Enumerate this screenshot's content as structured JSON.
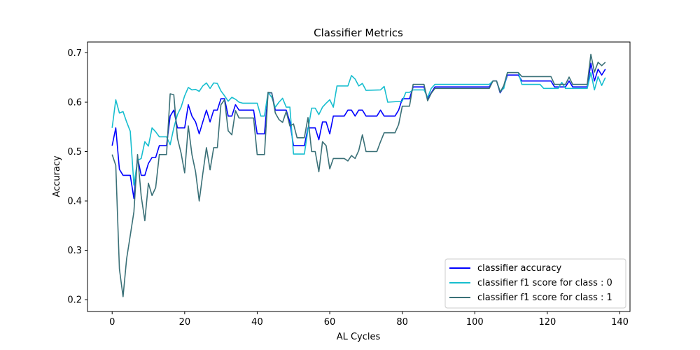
{
  "chart_data": {
    "type": "line",
    "title": "Classifier Metrics",
    "xlabel": "AL Cycles",
    "ylabel": "Accuracy",
    "xlim": [
      -6.8,
      142.8
    ],
    "ylim": [
      0.176,
      0.722
    ],
    "xticks": [
      0,
      20,
      40,
      60,
      80,
      100,
      120,
      140
    ],
    "yticks": [
      0.2,
      0.3,
      0.4,
      0.5,
      0.6,
      0.7
    ],
    "xtick_labels": [
      "0",
      "20",
      "40",
      "60",
      "80",
      "100",
      "120",
      "140"
    ],
    "ytick_labels": [
      "0.2",
      "0.3",
      "0.4",
      "0.5",
      "0.6",
      "0.7"
    ],
    "grid": false,
    "legend_position": "lower-right",
    "series": [
      {
        "name": "classifier accuracy",
        "color": "#0000ff",
        "points": [
          [
            0,
            0.512
          ],
          [
            1,
            0.548
          ],
          [
            2,
            0.464
          ],
          [
            3,
            0.452
          ],
          [
            5,
            0.452
          ],
          [
            6,
            0.405
          ],
          [
            7,
            0.488
          ],
          [
            8,
            0.452
          ],
          [
            9,
            0.452
          ],
          [
            10,
            0.476
          ],
          [
            11,
            0.488
          ],
          [
            12,
            0.488
          ],
          [
            13,
            0.512
          ],
          [
            15,
            0.512
          ],
          [
            16,
            0.572
          ],
          [
            17,
            0.584
          ],
          [
            18,
            0.548
          ],
          [
            20,
            0.548
          ],
          [
            21,
            0.595
          ],
          [
            22,
            0.572
          ],
          [
            23,
            0.56
          ],
          [
            24,
            0.536
          ],
          [
            25,
            0.56
          ],
          [
            26,
            0.584
          ],
          [
            27,
            0.56
          ],
          [
            28,
            0.584
          ],
          [
            29,
            0.584
          ],
          [
            30,
            0.607
          ],
          [
            31,
            0.607
          ],
          [
            32,
            0.572
          ],
          [
            33,
            0.572
          ],
          [
            34,
            0.595
          ],
          [
            35,
            0.584
          ],
          [
            39,
            0.584
          ],
          [
            40,
            0.536
          ],
          [
            42,
            0.536
          ],
          [
            43,
            0.619
          ],
          [
            44,
            0.619
          ],
          [
            45,
            0.584
          ],
          [
            48,
            0.584
          ],
          [
            49,
            0.56
          ],
          [
            50,
            0.512
          ],
          [
            53,
            0.512
          ],
          [
            54,
            0.548
          ],
          [
            56,
            0.548
          ],
          [
            57,
            0.524
          ],
          [
            58,
            0.56
          ],
          [
            59,
            0.56
          ],
          [
            60,
            0.536
          ],
          [
            61,
            0.572
          ],
          [
            64,
            0.572
          ],
          [
            65,
            0.584
          ],
          [
            66,
            0.584
          ],
          [
            67,
            0.572
          ],
          [
            68,
            0.584
          ],
          [
            69,
            0.584
          ],
          [
            70,
            0.572
          ],
          [
            73,
            0.572
          ],
          [
            74,
            0.584
          ],
          [
            75,
            0.572
          ],
          [
            78,
            0.572
          ],
          [
            79,
            0.584
          ],
          [
            80,
            0.607
          ],
          [
            82,
            0.607
          ],
          [
            83,
            0.631
          ],
          [
            86,
            0.631
          ],
          [
            87,
            0.607
          ],
          [
            88,
            0.619
          ],
          [
            89,
            0.631
          ],
          [
            104,
            0.631
          ],
          [
            105,
            0.643
          ],
          [
            106,
            0.643
          ],
          [
            107,
            0.619
          ],
          [
            108,
            0.631
          ],
          [
            109,
            0.655
          ],
          [
            112,
            0.655
          ],
          [
            113,
            0.643
          ],
          [
            121,
            0.643
          ],
          [
            122,
            0.631
          ],
          [
            125,
            0.631
          ],
          [
            126,
            0.643
          ],
          [
            127,
            0.631
          ],
          [
            131,
            0.631
          ],
          [
            132,
            0.679
          ],
          [
            133,
            0.643
          ],
          [
            134,
            0.667
          ],
          [
            135,
            0.655
          ],
          [
            136,
            0.667
          ]
        ]
      },
      {
        "name": "classifier f1 score for class : 0",
        "color": "#17becf",
        "points": [
          [
            0,
            0.548
          ],
          [
            1,
            0.605
          ],
          [
            2,
            0.578
          ],
          [
            3,
            0.581
          ],
          [
            4,
            0.56
          ],
          [
            5,
            0.541
          ],
          [
            6,
            0.432
          ],
          [
            7,
            0.482
          ],
          [
            8,
            0.486
          ],
          [
            9,
            0.52
          ],
          [
            10,
            0.511
          ],
          [
            11,
            0.548
          ],
          [
            12,
            0.54
          ],
          [
            13,
            0.53
          ],
          [
            15,
            0.53
          ],
          [
            16,
            0.514
          ],
          [
            17,
            0.548
          ],
          [
            18,
            0.575
          ],
          [
            19,
            0.59
          ],
          [
            20,
            0.613
          ],
          [
            21,
            0.63
          ],
          [
            22,
            0.625
          ],
          [
            23,
            0.626
          ],
          [
            24,
            0.622
          ],
          [
            25,
            0.633
          ],
          [
            26,
            0.639
          ],
          [
            27,
            0.628
          ],
          [
            28,
            0.639
          ],
          [
            29,
            0.638
          ],
          [
            30,
            0.623
          ],
          [
            31,
            0.613
          ],
          [
            32,
            0.602
          ],
          [
            33,
            0.61
          ],
          [
            34,
            0.606
          ],
          [
            35,
            0.6
          ],
          [
            36,
            0.598
          ],
          [
            40,
            0.598
          ],
          [
            41,
            0.572
          ],
          [
            42,
            0.572
          ],
          [
            43,
            0.62
          ],
          [
            44,
            0.61
          ],
          [
            45,
            0.59
          ],
          [
            46,
            0.6
          ],
          [
            47,
            0.608
          ],
          [
            48,
            0.59
          ],
          [
            49,
            0.59
          ],
          [
            50,
            0.495
          ],
          [
            53,
            0.495
          ],
          [
            54,
            0.545
          ],
          [
            55,
            0.588
          ],
          [
            56,
            0.588
          ],
          [
            57,
            0.575
          ],
          [
            58,
            0.59
          ],
          [
            59,
            0.598
          ],
          [
            60,
            0.605
          ],
          [
            61,
            0.59
          ],
          [
            62,
            0.633
          ],
          [
            65,
            0.633
          ],
          [
            66,
            0.654
          ],
          [
            67,
            0.647
          ],
          [
            68,
            0.633
          ],
          [
            69,
            0.638
          ],
          [
            70,
            0.624
          ],
          [
            74,
            0.625
          ],
          [
            75,
            0.632
          ],
          [
            76,
            0.6
          ],
          [
            80,
            0.602
          ],
          [
            81,
            0.62
          ],
          [
            82,
            0.62
          ],
          [
            83,
            0.625
          ],
          [
            86,
            0.625
          ],
          [
            87,
            0.61
          ],
          [
            88,
            0.628
          ],
          [
            89,
            0.636
          ],
          [
            104,
            0.636
          ],
          [
            105,
            0.643
          ],
          [
            106,
            0.643
          ],
          [
            107,
            0.622
          ],
          [
            108,
            0.628
          ],
          [
            109,
            0.66
          ],
          [
            112,
            0.66
          ],
          [
            113,
            0.636
          ],
          [
            118,
            0.636
          ],
          [
            119,
            0.628
          ],
          [
            121,
            0.628
          ],
          [
            122,
            0.628
          ],
          [
            123,
            0.628
          ],
          [
            124,
            0.64
          ],
          [
            125,
            0.628
          ],
          [
            131,
            0.628
          ],
          [
            132,
            0.66
          ],
          [
            133,
            0.625
          ],
          [
            134,
            0.652
          ],
          [
            135,
            0.634
          ],
          [
            136,
            0.65
          ]
        ]
      },
      {
        "name": "classifier f1 score for class : 1",
        "color": "#3a7077",
        "points": [
          [
            0,
            0.494
          ],
          [
            1,
            0.472
          ],
          [
            2,
            0.262
          ],
          [
            3,
            0.206
          ],
          [
            4,
            0.283
          ],
          [
            5,
            0.33
          ],
          [
            6,
            0.378
          ],
          [
            7,
            0.494
          ],
          [
            8,
            0.41
          ],
          [
            9,
            0.36
          ],
          [
            10,
            0.436
          ],
          [
            11,
            0.411
          ],
          [
            12,
            0.427
          ],
          [
            13,
            0.494
          ],
          [
            15,
            0.494
          ],
          [
            16,
            0.617
          ],
          [
            17,
            0.615
          ],
          [
            18,
            0.527
          ],
          [
            19,
            0.497
          ],
          [
            20,
            0.457
          ],
          [
            21,
            0.552
          ],
          [
            22,
            0.494
          ],
          [
            23,
            0.459
          ],
          [
            24,
            0.4
          ],
          [
            25,
            0.455
          ],
          [
            26,
            0.508
          ],
          [
            27,
            0.463
          ],
          [
            28,
            0.508
          ],
          [
            29,
            0.508
          ],
          [
            30,
            0.595
          ],
          [
            31,
            0.605
          ],
          [
            32,
            0.542
          ],
          [
            33,
            0.534
          ],
          [
            34,
            0.583
          ],
          [
            35,
            0.568
          ],
          [
            39,
            0.568
          ],
          [
            40,
            0.494
          ],
          [
            42,
            0.494
          ],
          [
            43,
            0.62
          ],
          [
            44,
            0.619
          ],
          [
            45,
            0.578
          ],
          [
            46,
            0.565
          ],
          [
            47,
            0.559
          ],
          [
            48,
            0.581
          ],
          [
            49,
            0.552
          ],
          [
            50,
            0.556
          ],
          [
            51,
            0.528
          ],
          [
            53,
            0.528
          ],
          [
            54,
            0.569
          ],
          [
            55,
            0.5
          ],
          [
            56,
            0.5
          ],
          [
            57,
            0.459
          ],
          [
            58,
            0.52
          ],
          [
            59,
            0.512
          ],
          [
            60,
            0.465
          ],
          [
            61,
            0.486
          ],
          [
            64,
            0.486
          ],
          [
            65,
            0.481
          ],
          [
            66,
            0.492
          ],
          [
            67,
            0.486
          ],
          [
            68,
            0.502
          ],
          [
            69,
            0.534
          ],
          [
            70,
            0.5
          ],
          [
            73,
            0.5
          ],
          [
            74,
            0.52
          ],
          [
            75,
            0.538
          ],
          [
            78,
            0.538
          ],
          [
            79,
            0.555
          ],
          [
            80,
            0.592
          ],
          [
            82,
            0.592
          ],
          [
            83,
            0.636
          ],
          [
            86,
            0.636
          ],
          [
            87,
            0.603
          ],
          [
            88,
            0.618
          ],
          [
            89,
            0.628
          ],
          [
            104,
            0.628
          ],
          [
            105,
            0.643
          ],
          [
            106,
            0.643
          ],
          [
            107,
            0.62
          ],
          [
            108,
            0.634
          ],
          [
            109,
            0.66
          ],
          [
            112,
            0.66
          ],
          [
            113,
            0.652
          ],
          [
            121,
            0.652
          ],
          [
            122,
            0.636
          ],
          [
            125,
            0.636
          ],
          [
            126,
            0.651
          ],
          [
            127,
            0.636
          ],
          [
            131,
            0.636
          ],
          [
            132,
            0.697
          ],
          [
            133,
            0.661
          ],
          [
            134,
            0.681
          ],
          [
            135,
            0.674
          ],
          [
            136,
            0.681
          ]
        ]
      }
    ]
  }
}
